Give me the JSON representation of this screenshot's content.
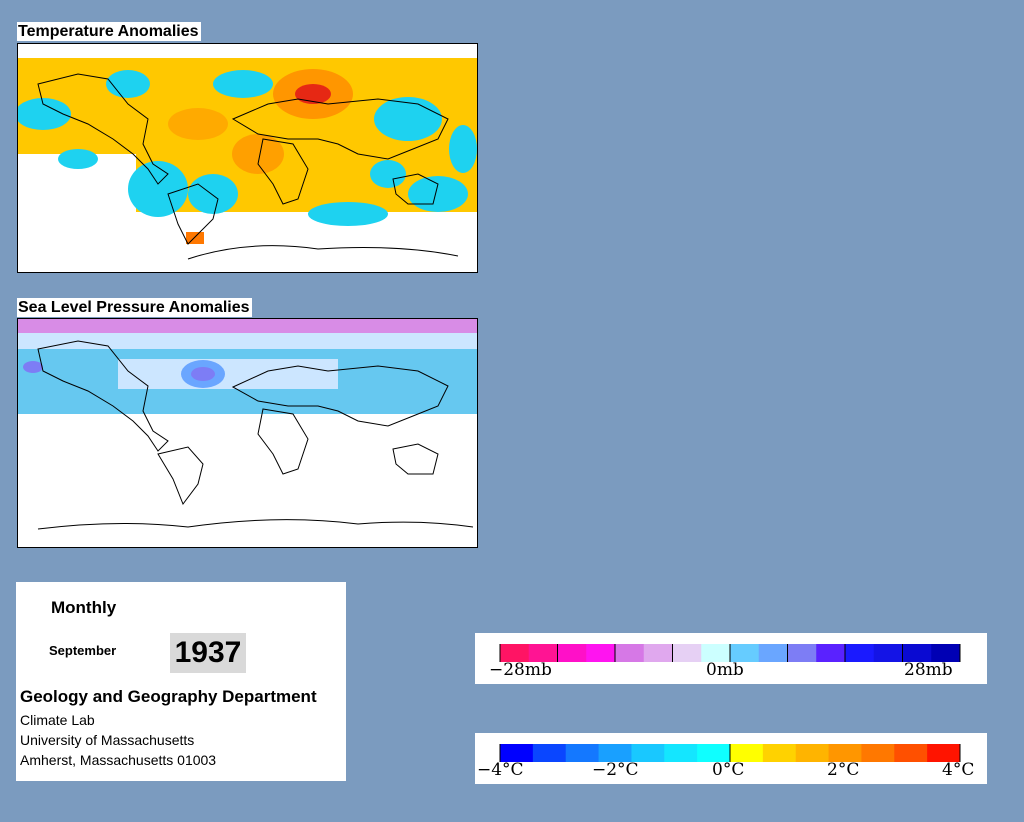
{
  "panels": {
    "temperature": {
      "title": "Temperature Anomalies"
    },
    "pressure": {
      "title": "Sea Level Pressure Anomalies"
    }
  },
  "info": {
    "frequency": "Monthly",
    "month": "September",
    "year": "1937",
    "department": "Geology and Geography Department",
    "lab": "Climate Lab",
    "university": "University of Massachusetts",
    "address": "Amherst, Massachusetts 01003"
  },
  "legends": {
    "pressure": {
      "labels": [
        "−28mb",
        "0mb",
        "28mb"
      ],
      "colors": [
        "#ff1464",
        "#ff1493",
        "#ff10c8",
        "#ff14f0",
        "#d678e6",
        "#e0a8ee",
        "#e6d0f4",
        "#ccffff",
        "#66ccff",
        "#6aa6ff",
        "#7d7df5",
        "#5a22ff",
        "#1a1aff",
        "#1414e6",
        "#0a0ad2",
        "#0000b4"
      ]
    },
    "temperature": {
      "labels": [
        "−4°C",
        "−2°C",
        "0°C",
        "2°C",
        "4°C"
      ],
      "colors": [
        "#0000ff",
        "#0a46ff",
        "#1478ff",
        "#19a0ff",
        "#19c8ff",
        "#14e6ff",
        "#0fffff",
        "#ffff00",
        "#ffd200",
        "#ffb400",
        "#ff9600",
        "#ff7800",
        "#ff5000",
        "#ff1400"
      ]
    }
  },
  "colors": {
    "background": "#7b9bbf",
    "land_outline": "#000000",
    "warm": "#ffc800",
    "cool": "#1ed2f0",
    "hot": "#e62814",
    "pressure_low": "#cce6ff",
    "pressure_mid": "#66c8f0",
    "pressure_high": "#d88ce6"
  }
}
